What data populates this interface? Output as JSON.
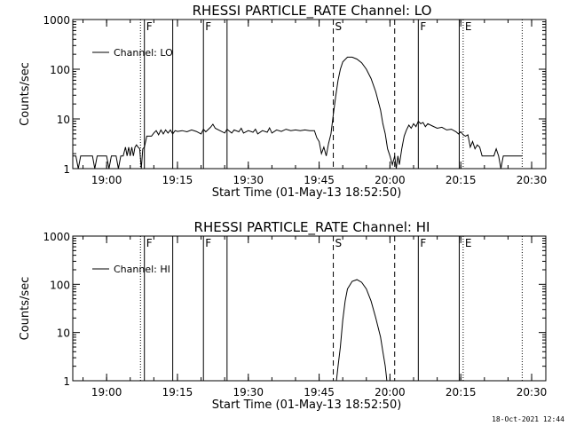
{
  "timestamp": "18-Oct-2021 12:44",
  "chart_data": [
    {
      "type": "line",
      "title": "RHESSI PARTICLE_RATE Channel: LO",
      "xlabel": "Start Time (01-May-13 18:52:50)",
      "ylabel": "Counts/sec",
      "y_scale": "log",
      "ylim": [
        1,
        1000
      ],
      "y_ticks": [
        "1",
        "10",
        "100",
        "1000"
      ],
      "xlim": [
        "18:52:50",
        "20:33:00"
      ],
      "x_ticks": [
        "19:00",
        "19:15",
        "19:30",
        "19:45",
        "20:00",
        "20:15",
        "20:30"
      ],
      "legend": "Channel: LO",
      "legend_position": "top-left",
      "events": [
        {
          "time": "19:07:10",
          "style": "dotted",
          "label": ""
        },
        {
          "time": "19:08:00",
          "style": "solid",
          "label": "F"
        },
        {
          "time": "19:14:00",
          "style": "solid",
          "label": ""
        },
        {
          "time": "19:20:30",
          "style": "solid",
          "label": "F"
        },
        {
          "time": "19:25:30",
          "style": "solid",
          "label": ""
        },
        {
          "time": "19:48:00",
          "style": "dashed",
          "label": "S"
        },
        {
          "time": "20:01:00",
          "style": "dashed",
          "label": ""
        },
        {
          "time": "20:06:00",
          "style": "solid",
          "label": "F"
        },
        {
          "time": "20:14:40",
          "style": "solid",
          "label": ""
        },
        {
          "time": "20:15:30",
          "style": "dotted",
          "label": "E"
        },
        {
          "time": "20:28:00",
          "style": "dotted",
          "label": ""
        }
      ],
      "series": [
        {
          "name": "Channel: LO",
          "points": [
            [
              "18:52:50",
              1.8
            ],
            [
              "18:53:30",
              1.8
            ],
            [
              "18:54:00",
              1.0
            ],
            [
              "18:54:30",
              1.8
            ],
            [
              "18:57:00",
              1.8
            ],
            [
              "18:57:30",
              1.0
            ],
            [
              "18:58:00",
              1.8
            ],
            [
              "19:00:00",
              1.8
            ],
            [
              "19:00:30",
              1.0
            ],
            [
              "19:01:00",
              1.8
            ],
            [
              "19:02:00",
              1.8
            ],
            [
              "19:02:30",
              1.0
            ],
            [
              "19:03:00",
              1.8
            ],
            [
              "19:03:30",
              1.8
            ],
            [
              "19:04:00",
              2.7
            ],
            [
              "19:04:20",
              1.8
            ],
            [
              "19:04:40",
              2.7
            ],
            [
              "19:05:00",
              1.8
            ],
            [
              "19:05:20",
              2.7
            ],
            [
              "19:05:40",
              1.8
            ],
            [
              "19:06:00",
              2.7
            ],
            [
              "19:06:20",
              3.0
            ],
            [
              "19:06:40",
              2.7
            ],
            [
              "19:07:00",
              2.5
            ],
            [
              "19:07:20",
              1.0
            ],
            [
              "19:07:40",
              2.5
            ],
            [
              "19:08:00",
              2.7
            ],
            [
              "19:08:30",
              4.5
            ],
            [
              "19:09:30",
              4.5
            ],
            [
              "19:10:00",
              5.2
            ],
            [
              "19:10:30",
              5.8
            ],
            [
              "19:11:00",
              4.8
            ],
            [
              "19:11:30",
              6.0
            ],
            [
              "19:12:00",
              5.0
            ],
            [
              "19:12:30",
              6.0
            ],
            [
              "19:13:00",
              5.2
            ],
            [
              "19:13:30",
              6.0
            ],
            [
              "19:14:00",
              5.0
            ],
            [
              "19:14:30",
              5.8
            ],
            [
              "19:15:00",
              5.6
            ],
            [
              "19:16:00",
              5.8
            ],
            [
              "19:17:00",
              5.5
            ],
            [
              "19:18:00",
              6.0
            ],
            [
              "19:19:00",
              5.6
            ],
            [
              "19:20:00",
              5.0
            ],
            [
              "19:20:30",
              6.2
            ],
            [
              "19:21:00",
              5.5
            ],
            [
              "19:22:00",
              6.8
            ],
            [
              "19:22:30",
              7.8
            ],
            [
              "19:23:00",
              6.5
            ],
            [
              "19:24:00",
              5.8
            ],
            [
              "19:25:00",
              5.2
            ],
            [
              "19:25:30",
              6.2
            ],
            [
              "19:26:30",
              5.2
            ],
            [
              "19:27:00",
              6.0
            ],
            [
              "19:28:00",
              5.5
            ],
            [
              "19:28:30",
              6.5
            ],
            [
              "19:29:00",
              5.2
            ],
            [
              "19:30:00",
              5.8
            ],
            [
              "19:31:00",
              5.4
            ],
            [
              "19:31:30",
              6.2
            ],
            [
              "19:32:00",
              5.0
            ],
            [
              "19:33:00",
              5.8
            ],
            [
              "19:34:00",
              5.4
            ],
            [
              "19:34:30",
              6.6
            ],
            [
              "19:35:00",
              5.2
            ],
            [
              "19:36:00",
              6.0
            ],
            [
              "19:37:00",
              5.6
            ],
            [
              "19:38:00",
              6.2
            ],
            [
              "19:39:00",
              5.8
            ],
            [
              "19:40:00",
              6.0
            ],
            [
              "19:41:00",
              5.8
            ],
            [
              "19:42:00",
              6.0
            ],
            [
              "19:43:00",
              5.8
            ],
            [
              "19:44:00",
              5.8
            ],
            [
              "19:44:30",
              4.2
            ],
            [
              "19:45:00",
              3.5
            ],
            [
              "19:45:30",
              2.0
            ],
            [
              "19:46:00",
              2.7
            ],
            [
              "19:46:30",
              1.8
            ],
            [
              "19:47:00",
              3.2
            ],
            [
              "19:47:30",
              5.0
            ],
            [
              "19:48:00",
              12
            ],
            [
              "19:48:30",
              28
            ],
            [
              "19:49:00",
              60
            ],
            [
              "19:49:30",
              100
            ],
            [
              "19:50:00",
              140
            ],
            [
              "19:51:00",
              175
            ],
            [
              "19:52:00",
              175
            ],
            [
              "19:53:00",
              160
            ],
            [
              "19:54:00",
              135
            ],
            [
              "19:55:00",
              100
            ],
            [
              "19:56:00",
              65
            ],
            [
              "19:57:00",
              35
            ],
            [
              "19:58:00",
              15
            ],
            [
              "19:58:30",
              8
            ],
            [
              "19:59:00",
              5
            ],
            [
              "19:59:30",
              2.5
            ],
            [
              "20:00:00",
              1.8
            ],
            [
              "20:00:30",
              1.2
            ],
            [
              "20:01:00",
              1.8
            ],
            [
              "20:01:20",
              1.0
            ],
            [
              "20:01:40",
              1.8
            ],
            [
              "20:02:00",
              1.2
            ],
            [
              "20:02:30",
              2.5
            ],
            [
              "20:03:00",
              4.5
            ],
            [
              "20:03:30",
              6.0
            ],
            [
              "20:04:00",
              7.5
            ],
            [
              "20:04:30",
              6.5
            ],
            [
              "20:05:00",
              8.0
            ],
            [
              "20:05:30",
              7.0
            ],
            [
              "20:06:00",
              9.0
            ],
            [
              "20:06:30",
              8.0
            ],
            [
              "20:07:00",
              8.5
            ],
            [
              "20:07:30",
              7.0
            ],
            [
              "20:08:00",
              8.0
            ],
            [
              "20:09:00",
              7.2
            ],
            [
              "20:10:00",
              6.5
            ],
            [
              "20:11:00",
              6.8
            ],
            [
              "20:12:00",
              6.0
            ],
            [
              "20:13:00",
              6.2
            ],
            [
              "20:14:00",
              5.5
            ],
            [
              "20:14:30",
              5.0
            ],
            [
              "20:15:00",
              5.5
            ],
            [
              "20:15:30",
              4.8
            ],
            [
              "20:16:00",
              4.5
            ],
            [
              "20:16:30",
              4.8
            ],
            [
              "20:17:00",
              2.7
            ],
            [
              "20:17:30",
              3.5
            ],
            [
              "20:18:00",
              2.5
            ],
            [
              "20:18:30",
              3.0
            ],
            [
              "20:19:00",
              2.7
            ],
            [
              "20:19:30",
              1.8
            ],
            [
              "20:21:00",
              1.8
            ],
            [
              "20:22:00",
              1.8
            ],
            [
              "20:22:30",
              2.5
            ],
            [
              "20:23:00",
              1.8
            ],
            [
              "20:23:30",
              1.0
            ],
            [
              "20:24:00",
              1.8
            ],
            [
              "20:28:00",
              1.8
            ]
          ]
        }
      ]
    },
    {
      "type": "line",
      "title": "RHESSI PARTICLE_RATE Channel: HI",
      "xlabel": "Start Time (01-May-13 18:52:50)",
      "ylabel": "Counts/sec",
      "y_scale": "log",
      "ylim": [
        1,
        1000
      ],
      "y_ticks": [
        "1",
        "10",
        "100",
        "1000"
      ],
      "xlim": [
        "18:52:50",
        "20:33:00"
      ],
      "x_ticks": [
        "19:00",
        "19:15",
        "19:30",
        "19:45",
        "20:00",
        "20:15",
        "20:30"
      ],
      "legend": "Channel: HI",
      "legend_position": "top-left",
      "events": [
        {
          "time": "19:07:10",
          "style": "dotted",
          "label": ""
        },
        {
          "time": "19:08:00",
          "style": "solid",
          "label": "F"
        },
        {
          "time": "19:14:00",
          "style": "solid",
          "label": ""
        },
        {
          "time": "19:20:30",
          "style": "solid",
          "label": "F"
        },
        {
          "time": "19:25:30",
          "style": "solid",
          "label": ""
        },
        {
          "time": "19:48:00",
          "style": "dashed",
          "label": "S"
        },
        {
          "time": "20:01:00",
          "style": "dashed",
          "label": ""
        },
        {
          "time": "20:06:00",
          "style": "solid",
          "label": "F"
        },
        {
          "time": "20:14:40",
          "style": "solid",
          "label": ""
        },
        {
          "time": "20:15:30",
          "style": "dotted",
          "label": "E"
        },
        {
          "time": "20:28:00",
          "style": "dotted",
          "label": ""
        }
      ],
      "series": [
        {
          "name": "Channel: HI",
          "points": [
            [
              "19:48:40",
              1.0
            ],
            [
              "19:49:00",
              2.0
            ],
            [
              "19:49:30",
              5.0
            ],
            [
              "19:50:00",
              18
            ],
            [
              "19:50:30",
              45
            ],
            [
              "19:51:00",
              80
            ],
            [
              "19:52:00",
              115
            ],
            [
              "19:53:00",
              125
            ],
            [
              "19:54:00",
              110
            ],
            [
              "19:55:00",
              80
            ],
            [
              "19:56:00",
              45
            ],
            [
              "19:57:00",
              20
            ],
            [
              "19:58:00",
              8
            ],
            [
              "19:58:30",
              4
            ],
            [
              "19:59:00",
              2
            ],
            [
              "19:59:20",
              1.0
            ]
          ]
        }
      ]
    }
  ]
}
